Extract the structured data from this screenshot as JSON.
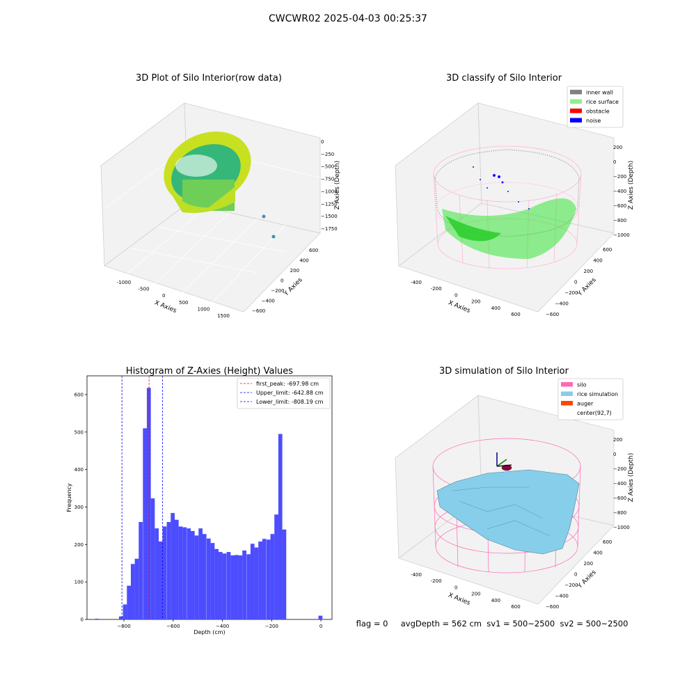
{
  "suptitle": "CWCWR02 2025-04-03 00:25:37",
  "status_line": "flag = 0     avgDepth = 562 cm  sv1 = 500~2500  sv2 = 500~2500",
  "panel1": {
    "title": "3D Plot of Silo Interior(row data)",
    "x_label": "X Axies",
    "y_label": "Y Axies",
    "z_label": "Z Axies (Depth)",
    "x_ticks": [
      "-1000",
      "-500",
      "0",
      "500",
      "1000",
      "1500"
    ],
    "y_ticks": [
      "600",
      "400",
      "200",
      "0",
      "−200",
      "−400",
      "−600"
    ],
    "z_ticks": [
      "0",
      "−250",
      "−500",
      "−750",
      "−1000",
      "−1250",
      "−1500",
      "−1750"
    ]
  },
  "panel2": {
    "title": "3D classify of Silo Interior",
    "x_label": "X Axies",
    "y_label": "Y Axies",
    "z_label": "Z Axies (Depth)",
    "x_ticks": [
      "-400",
      "-200",
      "0",
      "200",
      "400",
      "600"
    ],
    "y_ticks": [
      "600",
      "400",
      "200",
      "0",
      "−200",
      "−400",
      "−600"
    ],
    "z_ticks": [
      "200",
      "0",
      "−200",
      "−400",
      "−600",
      "−800",
      "−1000"
    ],
    "legend": [
      {
        "label": "inner wall",
        "color": "#808080"
      },
      {
        "label": "rice surface",
        "color": "#90ee90"
      },
      {
        "label": "obstacle",
        "color": "#ff0000"
      },
      {
        "label": "noise",
        "color": "#0000ff"
      }
    ]
  },
  "panel4": {
    "title": "3D simulation of Silo Interior",
    "x_label": "X Axies",
    "y_label": "Y Axies",
    "z_label": "Z Axies (Depth)",
    "x_ticks": [
      "-400",
      "-200",
      "0",
      "200",
      "400",
      "600"
    ],
    "y_ticks": [
      "600",
      "400",
      "200",
      "0",
      "−200",
      "−400",
      "−600"
    ],
    "z_ticks": [
      "200",
      "0",
      "−200",
      "−400",
      "−600",
      "−800",
      "−1000"
    ],
    "legend": [
      {
        "label": "silo",
        "color": "#ff69b4"
      },
      {
        "label": "rice simulation",
        "color": "#87ceeb"
      },
      {
        "label": "auger",
        "color": "#ff4500"
      },
      {
        "label": "center(92,7)",
        "color": "none"
      }
    ]
  },
  "chart_data": {
    "type": "bar",
    "title": "Histogram of Z-Axies (Height) Values",
    "xlabel": "Depth (cm)",
    "ylabel": "Frequency",
    "xlim": [
      -950,
      45
    ],
    "ylim": [
      0,
      650
    ],
    "x_ticks": [
      -800,
      -600,
      -400,
      -200,
      0
    ],
    "y_ticks": [
      0,
      100,
      200,
      300,
      400,
      500,
      600
    ],
    "bar_color": "#4d4dff",
    "bin_width": 16.2,
    "bins": [
      {
        "x": -918,
        "v": 2
      },
      {
        "x": -820,
        "v": 8
      },
      {
        "x": -804,
        "v": 40
      },
      {
        "x": -788,
        "v": 90
      },
      {
        "x": -772,
        "v": 148
      },
      {
        "x": -756,
        "v": 162
      },
      {
        "x": -740,
        "v": 260
      },
      {
        "x": -723,
        "v": 510
      },
      {
        "x": -707,
        "v": 618
      },
      {
        "x": -691,
        "v": 323
      },
      {
        "x": -675,
        "v": 243
      },
      {
        "x": -659,
        "v": 208
      },
      {
        "x": -643,
        "v": 248
      },
      {
        "x": -626,
        "v": 260
      },
      {
        "x": -610,
        "v": 284
      },
      {
        "x": -594,
        "v": 266
      },
      {
        "x": -578,
        "v": 248
      },
      {
        "x": -562,
        "v": 246
      },
      {
        "x": -545,
        "v": 243
      },
      {
        "x": -529,
        "v": 236
      },
      {
        "x": -513,
        "v": 224
      },
      {
        "x": -497,
        "v": 243
      },
      {
        "x": -481,
        "v": 228
      },
      {
        "x": -464,
        "v": 216
      },
      {
        "x": -448,
        "v": 204
      },
      {
        "x": -432,
        "v": 188
      },
      {
        "x": -416,
        "v": 180
      },
      {
        "x": -400,
        "v": 176
      },
      {
        "x": -383,
        "v": 180
      },
      {
        "x": -367,
        "v": 171
      },
      {
        "x": -351,
        "v": 172
      },
      {
        "x": -335,
        "v": 171
      },
      {
        "x": -319,
        "v": 184
      },
      {
        "x": -302,
        "v": 174
      },
      {
        "x": -286,
        "v": 202
      },
      {
        "x": -270,
        "v": 192
      },
      {
        "x": -254,
        "v": 208
      },
      {
        "x": -238,
        "v": 215
      },
      {
        "x": -221,
        "v": 213
      },
      {
        "x": -205,
        "v": 228
      },
      {
        "x": -189,
        "v": 280
      },
      {
        "x": -173,
        "v": 495
      },
      {
        "x": -157,
        "v": 240
      },
      {
        "x": -10,
        "v": 10
      }
    ],
    "vlines": [
      {
        "label": "first_peak: -697.98 cm",
        "x": -697.98,
        "color": "#ff0000"
      },
      {
        "label": "Upper_limit: -642.88 cm",
        "x": -642.88,
        "color": "#0000ff"
      },
      {
        "label": "Lower_limit: -808.19 cm",
        "x": -808.19,
        "color": "#0000ff"
      }
    ],
    "legend_position": "upper right"
  }
}
